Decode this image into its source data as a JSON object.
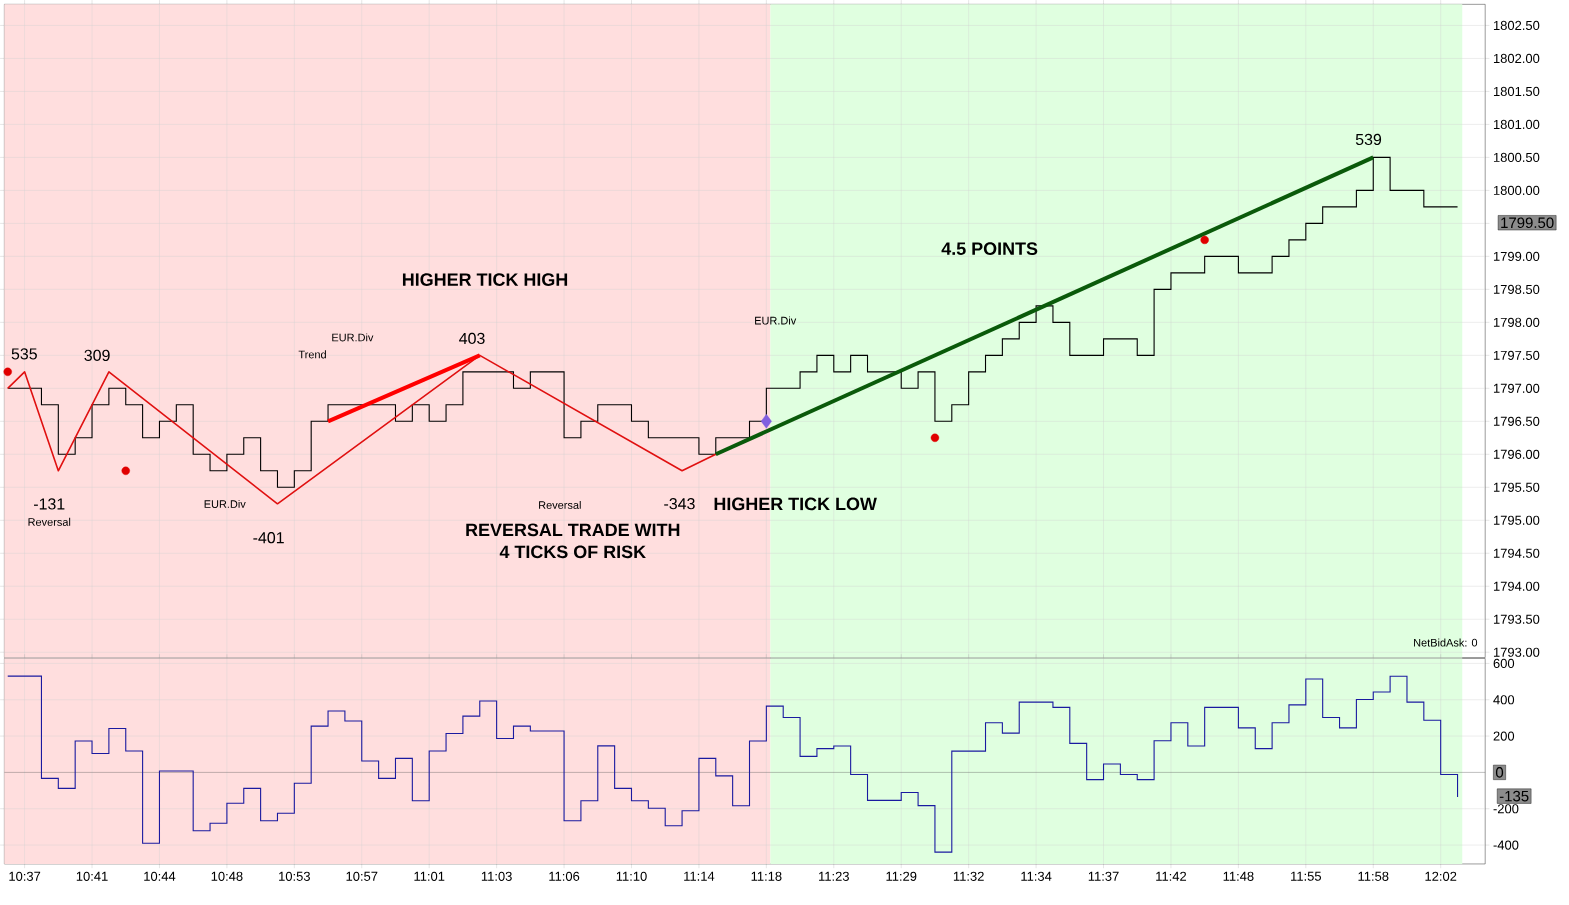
{
  "chart_data": [
    {
      "type": "step",
      "ylim": [
        1792.92,
        1802.82
      ],
      "grid": true,
      "tick_labels": "y",
      "categories": [
        null,
        null,
        null,
        null,
        null,
        null,
        null,
        null,
        null,
        null,
        null,
        null,
        null,
        null,
        null,
        null,
        null,
        null,
        null,
        null,
        null,
        null,
        null,
        null,
        null,
        null,
        null,
        null,
        null,
        null,
        null,
        null,
        null,
        null,
        null,
        null,
        null,
        null,
        null,
        null,
        null,
        null,
        null,
        null,
        null,
        null,
        null,
        null,
        null,
        null,
        null,
        null,
        null,
        null,
        null,
        null,
        null,
        null,
        null,
        null,
        null,
        null,
        null,
        null,
        null,
        null,
        null,
        null,
        null,
        null,
        null,
        null,
        null,
        null,
        null,
        null,
        null,
        null,
        null,
        null,
        null,
        null,
        null,
        null,
        null,
        null,
        null
      ],
      "yticks": [
        {
          "value": 1793,
          "label": "1793.00"
        },
        {
          "value": 1793.5,
          "label": "1793.50"
        },
        {
          "value": 1794,
          "label": "1794.00"
        },
        {
          "value": 1794.5,
          "label": "1794.50"
        },
        {
          "value": 1795,
          "label": "1795.00"
        },
        {
          "value": 1795.5,
          "label": "1795.50"
        },
        {
          "value": 1796,
          "label": "1796.00"
        },
        {
          "value": 1796.5,
          "label": "1796.50"
        },
        {
          "value": 1797,
          "label": "1797.00"
        },
        {
          "value": 1797.5,
          "label": "1797.50"
        },
        {
          "value": 1798,
          "label": "1798.00"
        },
        {
          "value": 1798.5,
          "label": "1798.50"
        },
        {
          "value": 1799,
          "label": "1799.00"
        },
        {
          "value": 1799.5,
          "label": null
        },
        {
          "value": 1800,
          "label": "1800.00"
        },
        {
          "value": 1800.5,
          "label": "1800.50"
        },
        {
          "value": 1801,
          "label": "1801.00"
        },
        {
          "value": 1801.5,
          "label": "1801.50"
        },
        {
          "value": 1802,
          "label": "1802.00"
        },
        {
          "value": 1802.5,
          "label": "1802.50"
        }
      ],
      "series": [
        {
          "color": "#000000",
          "values": [
            1797.0,
            1797.0,
            1796.75,
            1796.0,
            1796.25,
            1796.75,
            1797.0,
            1796.75,
            1796.25,
            1796.5,
            1796.75,
            1796.0,
            1795.75,
            1796.0,
            1796.25,
            1795.75,
            1795.5,
            1795.75,
            1796.5,
            1796.75,
            1796.75,
            1796.75,
            1796.75,
            1796.5,
            1796.75,
            1796.5,
            1796.75,
            1797.25,
            1797.25,
            1797.25,
            1797.0,
            1797.25,
            1797.25,
            1796.25,
            1796.5,
            1796.75,
            1796.75,
            1796.5,
            1796.25,
            1796.25,
            1796.25,
            1796.0,
            1796.25,
            1796.25,
            1796.5,
            1797.0,
            1797.0,
            1797.25,
            1797.5,
            1797.25,
            1797.5,
            1797.25,
            1797.25,
            1797.0,
            1797.25,
            1796.5,
            1796.75,
            1797.25,
            1797.5,
            1797.75,
            1798.0,
            1798.25,
            1798.0,
            1797.5,
            1797.5,
            1797.75,
            1797.75,
            1797.5,
            1798.5,
            1798.75,
            1798.75,
            1799.0,
            1799.0,
            1798.75,
            1798.75,
            1799.0,
            1799.25,
            1799.5,
            1799.75,
            1799.75,
            1800.0,
            1800.5,
            1800.0,
            1800.0,
            1799.75,
            1799.75,
            1799.75
          ]
        },
        {
          "type": "line",
          "color": "#e01010",
          "values": [
            1797.0,
            1797.25,
            null,
            1795.75,
            null,
            null,
            1797.25,
            null,
            null,
            null,
            null,
            null,
            null,
            null,
            null,
            null,
            1795.25,
            null,
            null,
            null,
            null,
            null,
            null,
            null,
            null,
            null,
            null,
            null,
            1797.5,
            null,
            null,
            null,
            null,
            null,
            null,
            null,
            null,
            null,
            null,
            null,
            1795.75,
            null,
            1796.0,
            null,
            null,
            null,
            null,
            null,
            null,
            null,
            null,
            null,
            null,
            null,
            null,
            null,
            null,
            null,
            null,
            null,
            null,
            null,
            null,
            null,
            null,
            null,
            null,
            null,
            null,
            null,
            null,
            null,
            null,
            null,
            null,
            null,
            null,
            null,
            null,
            null,
            null,
            null,
            null,
            null,
            null,
            null,
            null
          ]
        },
        {
          "type": "line",
          "color": "#ff0000",
          "values": [
            null,
            null,
            null,
            null,
            null,
            null,
            null,
            null,
            null,
            null,
            null,
            null,
            null,
            null,
            null,
            null,
            null,
            null,
            null,
            1796.5,
            null,
            null,
            null,
            null,
            null,
            null,
            null,
            null,
            1797.5,
            null,
            null,
            null,
            null,
            null,
            null,
            null,
            null,
            null,
            null,
            null,
            null,
            null,
            null,
            null,
            null,
            null,
            null,
            null,
            null,
            null,
            null,
            null,
            null,
            null,
            null,
            null,
            null,
            null,
            null,
            null,
            null,
            null,
            null,
            null,
            null,
            null,
            null,
            null,
            null,
            null,
            null,
            null,
            null,
            null,
            null,
            null,
            null,
            null,
            null,
            null,
            null,
            null,
            null,
            null,
            null,
            null,
            null
          ]
        },
        {
          "type": "line",
          "color": "#0a5a0a",
          "values": [
            null,
            null,
            null,
            null,
            null,
            null,
            null,
            null,
            null,
            null,
            null,
            null,
            null,
            null,
            null,
            null,
            null,
            null,
            null,
            null,
            null,
            null,
            null,
            null,
            null,
            null,
            null,
            null,
            null,
            null,
            null,
            null,
            null,
            null,
            null,
            null,
            null,
            null,
            null,
            null,
            null,
            null,
            1796.0,
            null,
            null,
            null,
            null,
            null,
            null,
            null,
            null,
            null,
            null,
            null,
            null,
            null,
            null,
            null,
            null,
            null,
            null,
            null,
            null,
            null,
            null,
            null,
            null,
            null,
            null,
            null,
            null,
            null,
            null,
            null,
            null,
            null,
            null,
            null,
            null,
            null,
            null,
            1800.5,
            null,
            null,
            null,
            null,
            null
          ]
        },
        {
          "type": "scatter",
          "marker": "circle",
          "color": "#e00000",
          "values": [
            1797.25,
            null,
            null,
            null,
            null,
            null,
            null,
            1795.75,
            null,
            null,
            null,
            null,
            null,
            null,
            null,
            null,
            null,
            null,
            null,
            null,
            null,
            null,
            null,
            null,
            null,
            null,
            null,
            null,
            null,
            null,
            null,
            null,
            null,
            null,
            null,
            null,
            null,
            null,
            null,
            null,
            null,
            null,
            null,
            null,
            null,
            null,
            null,
            null,
            null,
            null,
            null,
            null,
            null,
            null,
            null,
            1796.25,
            null,
            null,
            null,
            null,
            null,
            null,
            null,
            null,
            null,
            null,
            null,
            null,
            null,
            null,
            null,
            1799.25,
            null,
            null,
            null,
            null,
            null,
            null,
            null,
            null,
            null,
            null,
            null,
            null,
            null,
            null,
            null
          ]
        },
        {
          "type": "scatter",
          "marker": "diamond",
          "color": "#8060e0",
          "values": [
            null,
            null,
            null,
            null,
            null,
            null,
            null,
            null,
            null,
            null,
            null,
            null,
            null,
            null,
            null,
            null,
            null,
            null,
            null,
            null,
            null,
            null,
            null,
            null,
            null,
            null,
            null,
            null,
            null,
            null,
            null,
            null,
            null,
            null,
            null,
            null,
            null,
            null,
            null,
            null,
            null,
            null,
            null,
            null,
            null,
            1796.5,
            null,
            null,
            null,
            null,
            null,
            null,
            null,
            null,
            null,
            null,
            null,
            null,
            null,
            null,
            null,
            null,
            null,
            null,
            null,
            null,
            null,
            null,
            null,
            null,
            null,
            null,
            null,
            null,
            null,
            null,
            null,
            null,
            null,
            null,
            null,
            null,
            null,
            null,
            null,
            null,
            null
          ]
        }
      ],
      "annotations": [
        {
          "text": "535",
          "y": 1797.25
        },
        "309",
        "-131",
        {
          "text": "-401",
          "y": 1795.25
        },
        {
          "text": "403",
          "y": 1797.5
        },
        {
          "text": "-343",
          "y": 1795.75
        },
        {
          "text": "539",
          "y": 1800.5
        },
        "HIGHER TICK HIGH",
        "REVERSAL TRADE WITH",
        "4 TICKS OF RISK",
        "HIGHER TICK LOW",
        "4.5 POINTS",
        "Trend",
        "EUR.Div",
        "EUR.Div",
        "EUR.Div",
        "Reversal",
        "Reversal",
        "NetBidAsk: 0",
        "1799.50"
      ]
    },
    {
      "type": "step",
      "ylim": [
        -504,
        627
      ],
      "grid": true,
      "categories": [
        null,
        "10:37",
        null,
        null,
        null,
        "10:41",
        null,
        null,
        null,
        "10:44",
        null,
        null,
        null,
        "10:48",
        null,
        null,
        null,
        "10:53",
        null,
        null,
        null,
        "10:57",
        null,
        null,
        null,
        "11:01",
        null,
        null,
        null,
        "11:03",
        null,
        null,
        null,
        "11:06",
        null,
        null,
        null,
        "11:10",
        null,
        null,
        null,
        "11:14",
        null,
        null,
        null,
        "11:18",
        null,
        null,
        null,
        "11:23",
        null,
        null,
        null,
        "11:29",
        null,
        null,
        null,
        "11:32",
        null,
        null,
        null,
        "11:34",
        null,
        null,
        null,
        "11:37",
        null,
        null,
        null,
        "11:42",
        null,
        null,
        null,
        "11:48",
        null,
        null,
        null,
        "11:55",
        null,
        null,
        null,
        "11:58",
        null,
        null,
        null,
        "12:02",
        null
      ],
      "yticks": [
        -400,
        -200,
        200,
        400,
        600
      ],
      "ref_lines": [
        {
          "axis": "y",
          "value": 0,
          "label": "0",
          "color": "#606060"
        }
      ],
      "series": [
        {
          "color": "#1a1aa0",
          "values": [
            530,
            530,
            -33,
            -88,
            173,
            104,
            242,
            118,
            -390,
            8,
            8,
            -321,
            -280,
            -170,
            -88,
            -266,
            -225,
            -60,
            255,
            338,
            283,
            63,
            -33,
            77,
            -156,
            118,
            214,
            310,
            393,
            187,
            255,
            228,
            228,
            -266,
            -156,
            146,
            -88,
            -156,
            -197,
            -294,
            -211,
            77,
            -19,
            -184,
            173,
            365,
            302,
            88,
            131,
            145,
            -12,
            -154,
            -154,
            -111,
            -183,
            -439,
            117,
            117,
            273,
            216,
            387,
            387,
            358,
            160,
            -40,
            46,
            -12,
            -40,
            174,
            273,
            145,
            358,
            358,
            245,
            131,
            273,
            372,
            514,
            302,
            245,
            401,
            443,
            529,
            387,
            287,
            -12,
            -135
          ]
        }
      ],
      "annotations": [
        "-135"
      ]
    }
  ]
}
